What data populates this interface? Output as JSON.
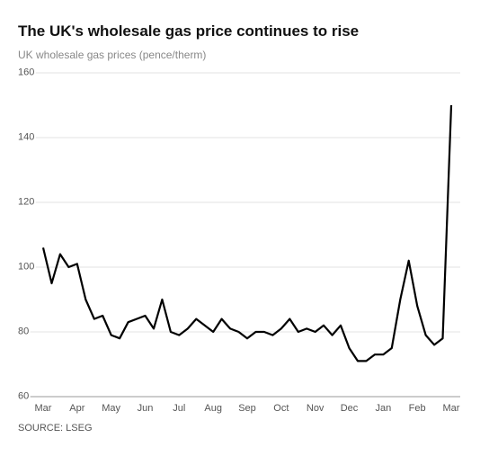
{
  "chart_data": {
    "type": "line",
    "title": "The UK's wholesale gas price continues to rise",
    "subtitle": "UK wholesale gas prices (pence/therm)",
    "source": "SOURCE: LSEG",
    "categories": [
      "Mar",
      null,
      null,
      null,
      "Apr",
      null,
      null,
      null,
      "May",
      null,
      null,
      null,
      "Jun",
      null,
      null,
      null,
      "Jul",
      null,
      null,
      null,
      "Aug",
      null,
      null,
      null,
      "Sep",
      null,
      null,
      null,
      "Oct",
      null,
      null,
      null,
      "Nov",
      null,
      null,
      null,
      "Dec",
      null,
      null,
      null,
      "Jan",
      null,
      null,
      null,
      "Feb",
      null,
      null,
      null,
      "Mar"
    ],
    "series": [
      {
        "name": "UK wholesale gas price",
        "color": "#000000",
        "values": [
          106,
          95,
          104,
          100,
          101,
          90,
          84,
          85,
          79,
          78,
          83,
          84,
          85,
          81,
          90,
          80,
          79,
          81,
          84,
          82,
          80,
          84,
          81,
          80,
          78,
          80,
          80,
          79,
          81,
          84,
          80,
          81,
          80,
          82,
          79,
          82,
          75,
          71,
          71,
          73,
          73,
          75,
          90,
          102,
          88,
          79,
          76,
          78,
          150
        ]
      }
    ],
    "ylim": [
      60,
      160
    ],
    "yticks": [
      60,
      80,
      100,
      120,
      140,
      160
    ],
    "grid": true
  }
}
